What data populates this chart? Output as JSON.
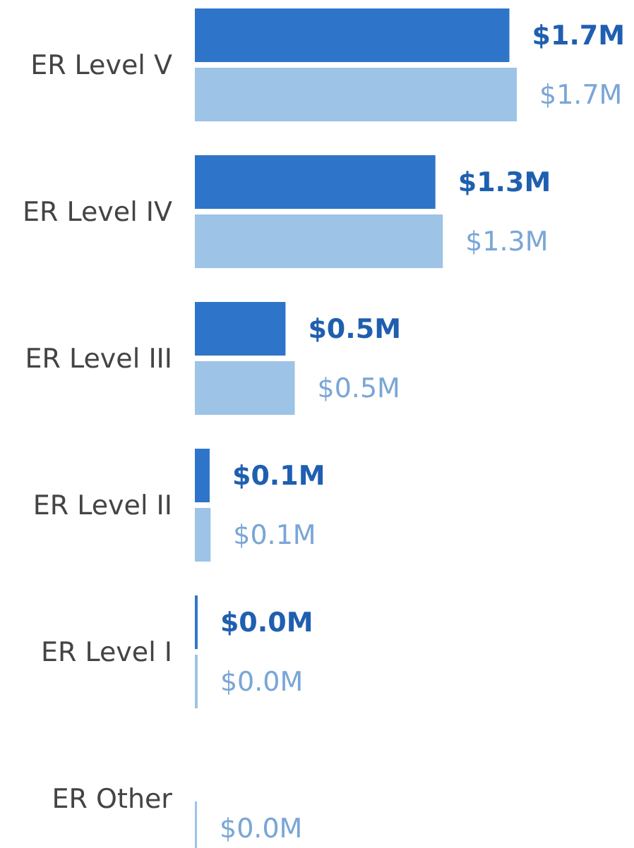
{
  "chart_data": {
    "type": "bar",
    "orientation": "horizontal",
    "categories": [
      "ER Level V",
      "ER Level IV",
      "ER Level III",
      "ER Level II",
      "ER Level I",
      "ER Other"
    ],
    "series": [
      {
        "color": "#2e75c9",
        "values": [
          1.7,
          1.3,
          0.49,
          0.08,
          0.015,
          null
        ],
        "value_labels": [
          "$1.7M",
          "$1.3M",
          "$0.5M",
          "$0.1M",
          "$0.0M",
          null
        ]
      },
      {
        "color": "#9dc3e6",
        "values": [
          1.74,
          1.34,
          0.54,
          0.085,
          0.015,
          0.01
        ],
        "value_labels": [
          "$1.7M",
          "$1.3M",
          "$0.5M",
          "$0.1M",
          "$0.0M",
          "$0.0M"
        ]
      }
    ]
  }
}
